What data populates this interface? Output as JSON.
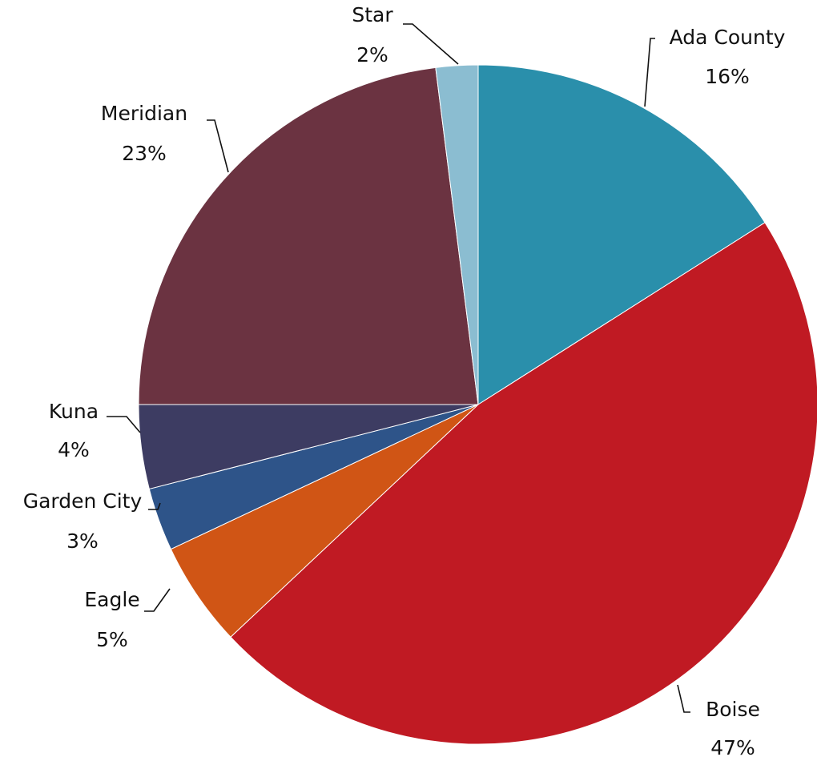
{
  "chart_data": {
    "type": "pie",
    "categories": [
      "Ada County",
      "Boise",
      "Eagle",
      "Garden City",
      "Kuna",
      "Meridian",
      "Star"
    ],
    "values": [
      16,
      47,
      5,
      3,
      4,
      23,
      2
    ],
    "value_labels": [
      "16%",
      "47%",
      "5%",
      "3%",
      "4%",
      "23%",
      "2%"
    ],
    "colors": [
      "#2a8fab",
      "#c01a23",
      "#d05515",
      "#2e5489",
      "#3d3c62",
      "#6b3341",
      "#8bbdd1"
    ]
  }
}
